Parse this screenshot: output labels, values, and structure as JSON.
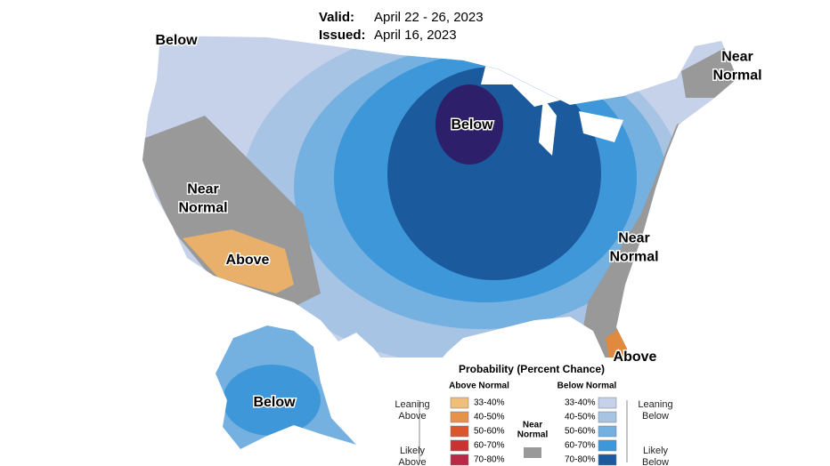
{
  "header": {
    "valid_label": "Valid:",
    "valid": "April 22 - 26, 2023",
    "issued_label": "Issued:",
    "issued": "April 16, 2023"
  },
  "regions": [
    {
      "lines": [
        "Below"
      ]
    },
    {
      "lines": [
        "Near",
        "Normal"
      ]
    },
    {
      "lines": [
        "Below"
      ]
    },
    {
      "lines": [
        "Near",
        "Normal"
      ]
    },
    {
      "lines": [
        "Above"
      ]
    },
    {
      "lines": [
        "Near",
        "Normal"
      ]
    },
    {
      "lines": [
        "Above"
      ]
    },
    {
      "lines": [
        "Below"
      ]
    }
  ],
  "legend": {
    "title": "Probability (Percent Chance)",
    "above_title": "Above Normal",
    "below_title": "Below Normal",
    "near_title": [
      "Near",
      "Normal"
    ],
    "leaning_above": [
      "Leaning",
      "Above"
    ],
    "likely_above": [
      "Likely",
      "Above"
    ],
    "leaning_below": [
      "Leaning",
      "Below"
    ],
    "likely_below": [
      "Likely",
      "Below"
    ],
    "above": [
      {
        "label": "33-40%",
        "color": "#efbe7a"
      },
      {
        "label": "40-50%",
        "color": "#e6924a"
      },
      {
        "label": "50-60%",
        "color": "#d9562e"
      },
      {
        "label": "60-70%",
        "color": "#c83232"
      },
      {
        "label": "70-80%",
        "color": "#b82a48"
      }
    ],
    "near_color": "#999999",
    "below": [
      {
        "label": "33-40%",
        "color": "#c6d1ea"
      },
      {
        "label": "40-50%",
        "color": "#a8c4e4"
      },
      {
        "label": "50-60%",
        "color": "#74b0e0"
      },
      {
        "label": "60-70%",
        "color": "#3d97d8"
      },
      {
        "label": "70-80%",
        "color": "#1b5a9c"
      }
    ]
  }
}
